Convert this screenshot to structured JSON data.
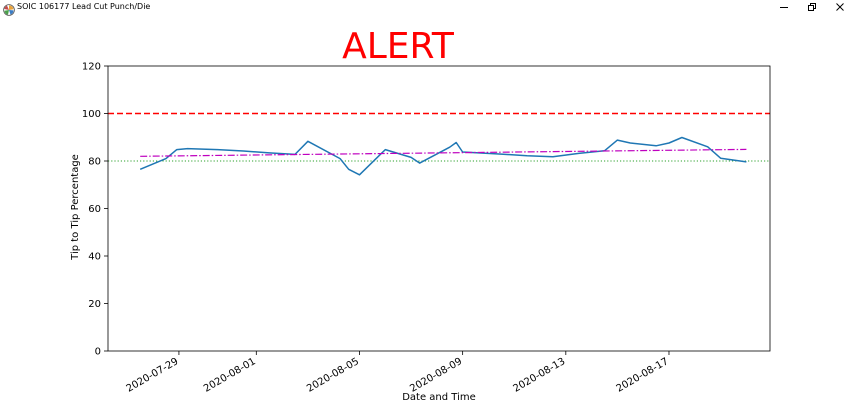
{
  "window": {
    "title": "SOIC 106177 Lead Cut Punch/Die",
    "icon": "matplotlib-icon",
    "controls": [
      "minimize-icon",
      "restore-icon",
      "close-icon"
    ]
  },
  "figure": {
    "title": "ALERT",
    "title_color": "#ff0000"
  },
  "chart_data": {
    "type": "line",
    "title": "ALERT",
    "xlabel": "Date and Time",
    "ylabel": "Tip to Tip Percentage",
    "xlim": [
      "2020-07-26T06:00",
      "2020-08-20T22:00"
    ],
    "ylim": [
      0,
      120
    ],
    "x_tick_labels": [
      "2020-07-29",
      "2020-08-01",
      "2020-08-05",
      "2020-08-09",
      "2020-08-13",
      "2020-08-17"
    ],
    "y_tick_labels": [
      "0",
      "20",
      "40",
      "60",
      "80",
      "100",
      "120"
    ],
    "y_ticks": [
      0,
      20,
      40,
      60,
      80,
      100,
      120
    ],
    "grid": false,
    "legend": "none",
    "series": [
      {
        "color": "#1f77b4",
        "style": "solid",
        "points": [
          [
            "2020-07-27T12:00",
            76.5
          ],
          [
            "2020-07-28T12:00",
            81.0
          ],
          [
            "2020-07-28T22:00",
            84.8
          ],
          [
            "2020-07-29T08:00",
            85.2
          ],
          [
            "2020-07-30T12:00",
            84.8
          ],
          [
            "2020-07-31T12:00",
            84.2
          ],
          [
            "2020-08-01T12:00",
            83.4
          ],
          [
            "2020-08-02T12:00",
            82.8
          ],
          [
            "2020-08-03T00:00",
            88.3
          ],
          [
            "2020-08-04T06:00",
            81.0
          ],
          [
            "2020-08-04T14:00",
            76.5
          ],
          [
            "2020-08-05T00:00",
            74.2
          ],
          [
            "2020-08-06T00:00",
            84.8
          ],
          [
            "2020-08-07T00:00",
            81.5
          ],
          [
            "2020-08-07T08:00",
            79.1
          ],
          [
            "2020-08-08T12:00",
            85.8
          ],
          [
            "2020-08-08T18:00",
            87.8
          ],
          [
            "2020-08-09T00:00",
            83.8
          ],
          [
            "2020-08-10T12:00",
            82.9
          ],
          [
            "2020-08-11T12:00",
            82.2
          ],
          [
            "2020-08-12T12:00",
            81.8
          ],
          [
            "2020-08-13T12:00",
            83.2
          ],
          [
            "2020-08-14T12:00",
            84.3
          ],
          [
            "2020-08-15T00:00",
            88.8
          ],
          [
            "2020-08-15T12:00",
            87.6
          ],
          [
            "2020-08-16T12:00",
            86.4
          ],
          [
            "2020-08-17T00:00",
            87.6
          ],
          [
            "2020-08-17T12:00",
            89.9
          ],
          [
            "2020-08-18T12:00",
            86.0
          ],
          [
            "2020-08-19T00:00",
            81.2
          ],
          [
            "2020-08-20T00:00",
            79.6
          ]
        ]
      },
      {
        "color": "#bf00bf",
        "style": "dashdot",
        "points": [
          [
            "2020-07-27T12:00",
            82.0
          ],
          [
            "2020-08-20T00:00",
            84.9
          ]
        ]
      }
    ],
    "reference_lines": [
      {
        "y": 100,
        "color": "#ff0000",
        "style": "dashed"
      },
      {
        "y": 80,
        "color": "#2ca02c",
        "style": "dotted"
      }
    ]
  }
}
